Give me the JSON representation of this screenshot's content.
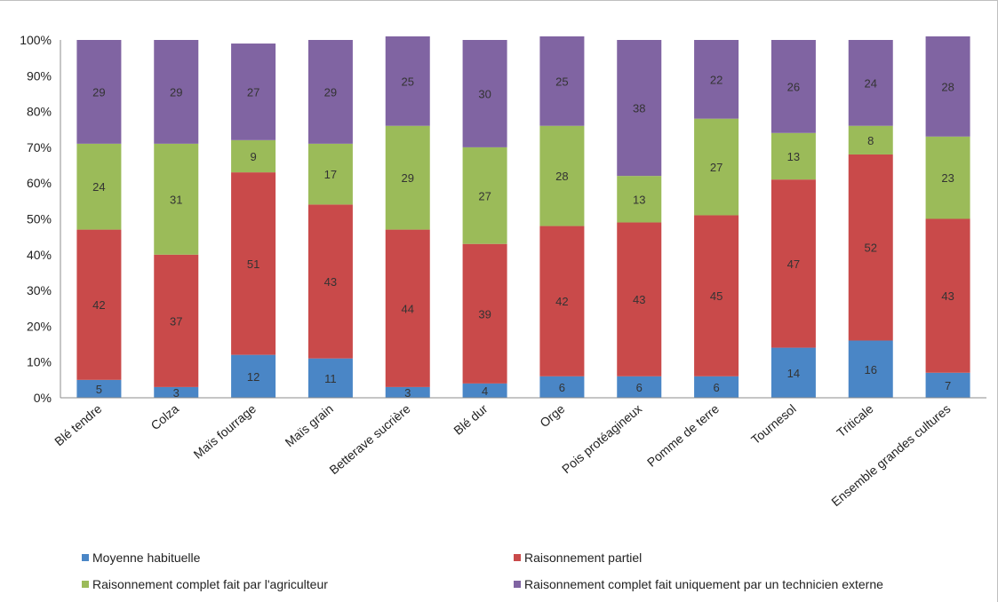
{
  "chart_data": {
    "type": "bar",
    "stacked": true,
    "percent": true,
    "title": "",
    "xlabel": "",
    "ylabel": "",
    "ylim": [
      0,
      100
    ],
    "yticks": [
      "0%",
      "10%",
      "20%",
      "30%",
      "40%",
      "50%",
      "60%",
      "70%",
      "80%",
      "90%",
      "100%"
    ],
    "grid": false,
    "legend_position": "bottom",
    "categories": [
      "Blé tendre",
      "Colza",
      "Maïs fourrage",
      "Maïs grain",
      "Betterave sucrière",
      "Blé dur",
      "Orge",
      "Pois protéagineux",
      "Pomme de terre",
      "Tournesol",
      "Triticale",
      "Ensemble grandes cultures"
    ],
    "series": [
      {
        "name": "Moyenne habituelle",
        "color": "#4a86c6",
        "values": [
          5,
          3,
          12,
          11,
          3,
          4,
          6,
          6,
          6,
          14,
          16,
          7
        ]
      },
      {
        "name": "Raisonnement partiel",
        "color": "#c94a4a",
        "values": [
          42,
          37,
          51,
          43,
          44,
          39,
          42,
          43,
          45,
          47,
          52,
          43
        ]
      },
      {
        "name": "Raisonnement complet fait par l'agriculteur",
        "color": "#9bbb59",
        "values": [
          24,
          31,
          9,
          17,
          29,
          27,
          28,
          13,
          27,
          13,
          8,
          23
        ]
      },
      {
        "name": "Raisonnement complet fait uniquement par un technicien externe",
        "color": "#8064a2",
        "values": [
          29,
          29,
          27,
          29,
          25,
          30,
          25,
          38,
          22,
          26,
          24,
          28
        ]
      }
    ]
  }
}
